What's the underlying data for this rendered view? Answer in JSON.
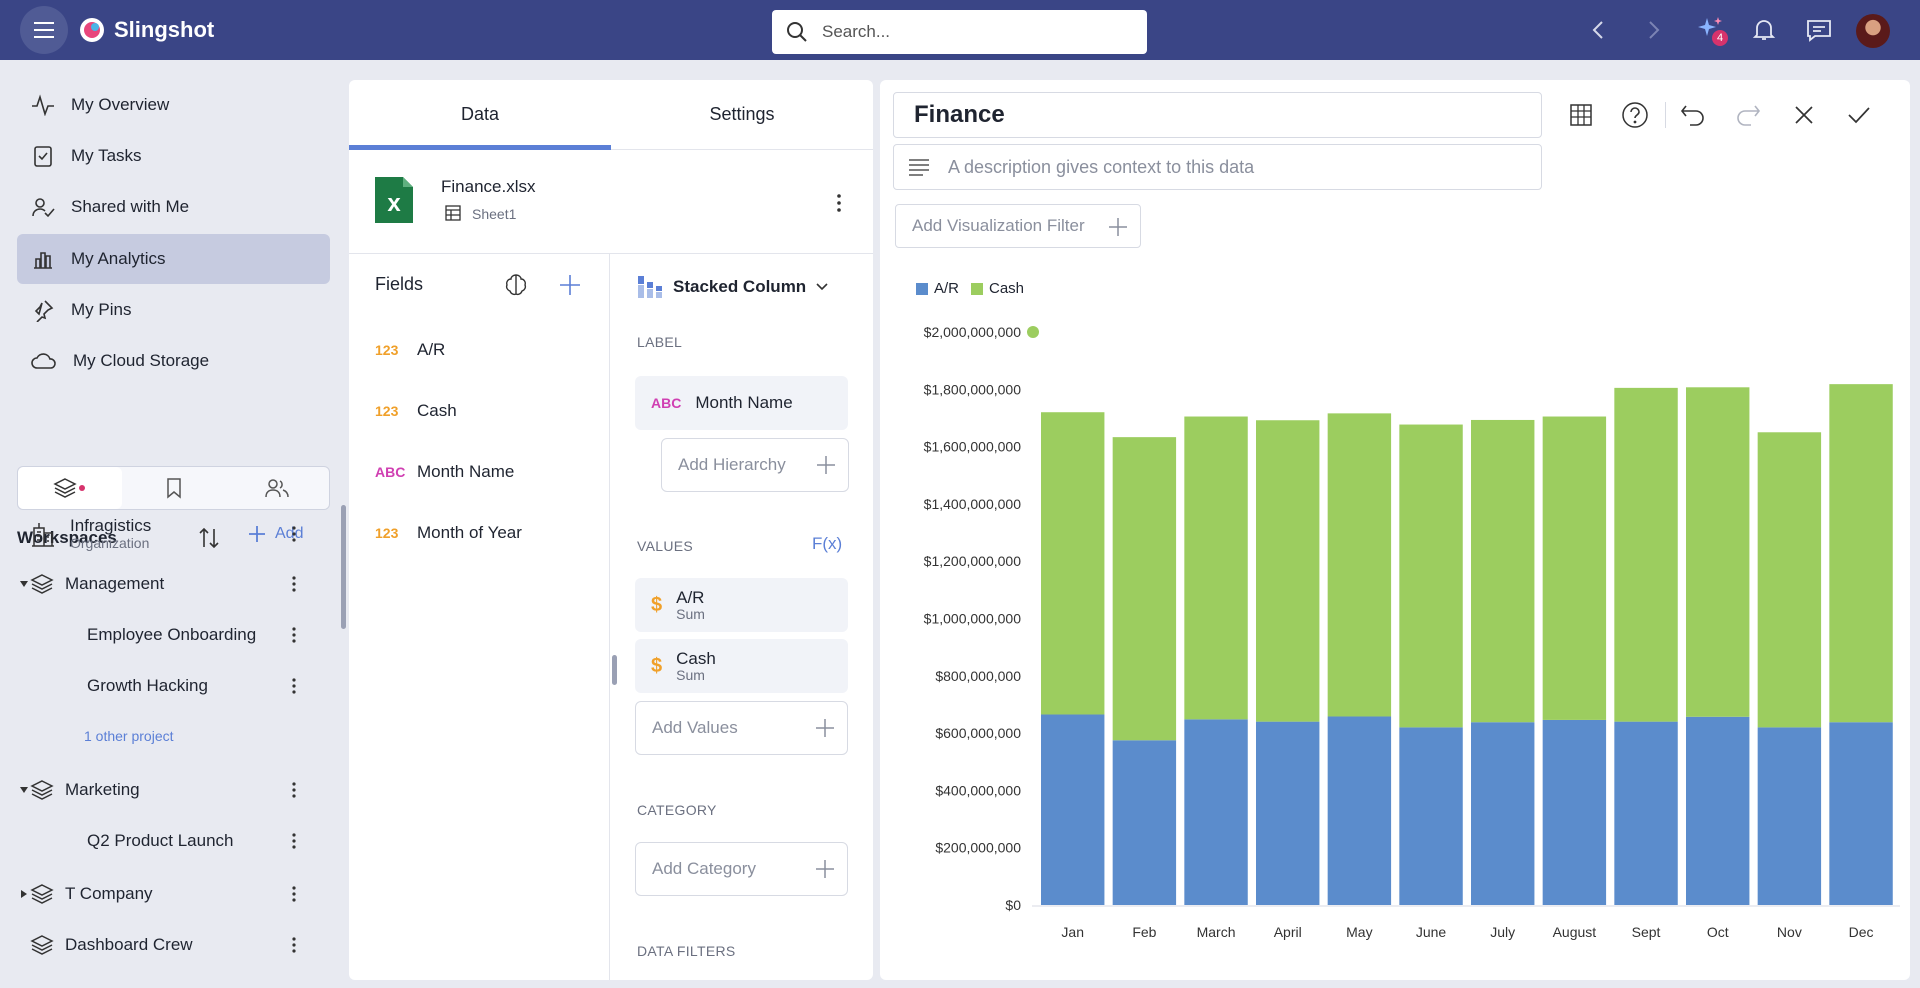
{
  "app": {
    "name": "Slingshot"
  },
  "search": {
    "placeholder": "Search..."
  },
  "topbar": {
    "notification_badge": "4"
  },
  "sidebar": {
    "items": [
      {
        "label": "My Overview",
        "icon": "activity-icon"
      },
      {
        "label": "My Tasks",
        "icon": "task-icon"
      },
      {
        "label": "Shared with Me",
        "icon": "shared-icon"
      },
      {
        "label": "My Analytics",
        "icon": "analytics-icon",
        "active": true
      },
      {
        "label": "My Pins",
        "icon": "pin-icon"
      },
      {
        "label": "My Cloud Storage",
        "icon": "cloud-icon"
      }
    ],
    "workspaces": {
      "title": "Workspaces",
      "add_label": "Add",
      "items": [
        {
          "label": "Infragistics",
          "sub": "Organization"
        },
        {
          "label": "Management"
        },
        {
          "label": "Employee Onboarding"
        },
        {
          "label": "Growth Hacking"
        },
        {
          "label": "1 other project"
        },
        {
          "label": "Marketing"
        },
        {
          "label": "Q2 Product Launch"
        },
        {
          "label": "T Company"
        },
        {
          "label": "Dashboard Crew"
        }
      ]
    }
  },
  "editor": {
    "tabs": [
      "Data",
      "Settings"
    ],
    "file": {
      "name": "Finance.xlsx",
      "sheet": "Sheet1"
    },
    "fields_title": "Fields",
    "fields": [
      {
        "type": "123",
        "label": "A/R"
      },
      {
        "type": "123",
        "label": "Cash"
      },
      {
        "type": "ABC",
        "label": "Month Name"
      },
      {
        "type": "123",
        "label": "Month of Year"
      }
    ],
    "viz_type": "Stacked Column",
    "label_section": "LABEL",
    "label_field": {
      "type": "ABC",
      "label": "Month Name"
    },
    "add_hierarchy": "Add Hierarchy",
    "values_section": "VALUES",
    "fx": "F(x)",
    "values": [
      {
        "label": "A/R",
        "agg": "Sum"
      },
      {
        "label": "Cash",
        "agg": "Sum"
      }
    ],
    "add_values": "Add Values",
    "category_section": "CATEGORY",
    "add_category": "Add Category",
    "data_filters_section": "DATA FILTERS"
  },
  "viz": {
    "title": "Finance",
    "description_placeholder": "A description gives context to this data",
    "add_filter": "Add Visualization Filter"
  },
  "colors": {
    "ar": "#5b8ccc",
    "cash": "#9ccd5f",
    "accent": "#5b7fd6",
    "topbar": "#3a4586"
  },
  "chart_data": {
    "type": "bar",
    "stacked": true,
    "categories": [
      "Jan",
      "Feb",
      "March",
      "April",
      "May",
      "June",
      "July",
      "August",
      "Sept",
      "Oct",
      "Nov",
      "Dec"
    ],
    "series": [
      {
        "name": "A/R",
        "values": [
          665000000,
          575000000,
          648000000,
          640000000,
          658000000,
          620000000,
          638000000,
          646000000,
          640000000,
          657000000,
          620000000,
          638000000
        ]
      },
      {
        "name": "Cash",
        "values": [
          1055000000,
          1058000000,
          1057000000,
          1052000000,
          1058000000,
          1057000000,
          1055000000,
          1059000000,
          1165000000,
          1150000000,
          1030000000,
          1180000000
        ]
      }
    ],
    "ylim": [
      0,
      2000000000
    ],
    "yticks": [
      "$0",
      "$200,000,000",
      "$400,000,000",
      "$600,000,000",
      "$800,000,000",
      "$1,000,000,000",
      "$1,200,000,000",
      "$1,400,000,000",
      "$1,600,000,000",
      "$1,800,000,000",
      "$2,000,000,000"
    ],
    "legend_position": "top-left",
    "grid": false
  }
}
